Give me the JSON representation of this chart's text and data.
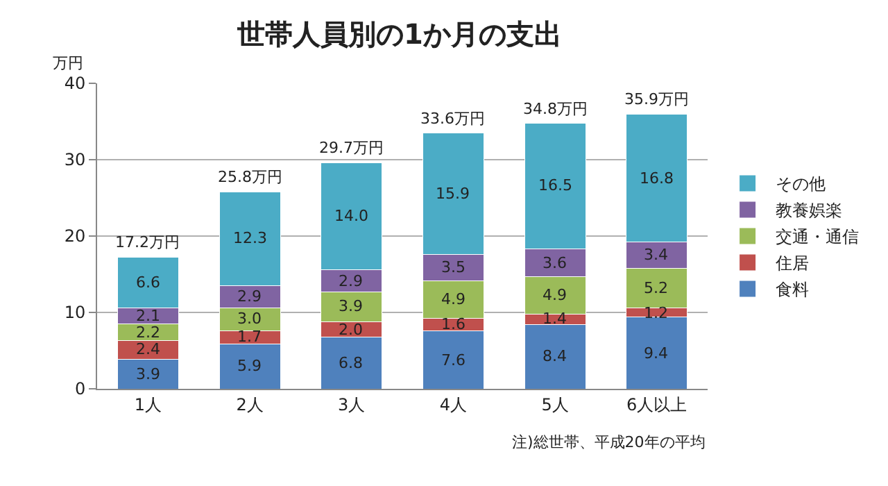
{
  "chart_data": {
    "type": "bar",
    "title": "世帯人員別の1か月の支出",
    "ylabel": "万円",
    "categories": [
      "1人",
      "2人",
      "3人",
      "4人",
      "5人",
      "6人以上"
    ],
    "stacked": true,
    "series": [
      {
        "name": "食料",
        "color": "#4f81bd",
        "values": [
          3.9,
          5.9,
          6.8,
          7.6,
          8.4,
          9.4
        ],
        "value_labels": [
          "3.9",
          "5.9",
          "6.8",
          "7.6",
          "8.4",
          "9.4"
        ]
      },
      {
        "name": "住居",
        "color": "#c0504d",
        "values": [
          2.4,
          1.7,
          2.0,
          1.6,
          1.4,
          1.2
        ],
        "value_labels": [
          "2.4",
          "1.7",
          "2.0",
          "1.6",
          "1.4",
          "1.2"
        ]
      },
      {
        "name": "交通・通信",
        "color": "#9bbb59",
        "values": [
          2.2,
          3.0,
          3.9,
          4.9,
          4.9,
          5.2
        ],
        "value_labels": [
          "2.2",
          "3.0",
          "3.9",
          "4.9",
          "4.9",
          "5.2"
        ]
      },
      {
        "name": "教養娯楽",
        "color": "#8064a2",
        "values": [
          2.1,
          2.9,
          2.9,
          3.5,
          3.6,
          3.4
        ],
        "value_labels": [
          "2.1",
          "2.9",
          "2.9",
          "3.5",
          "3.6",
          "3.4"
        ]
      },
      {
        "name": "その他",
        "color": "#4bacc6",
        "values": [
          6.6,
          12.3,
          14.0,
          15.9,
          16.5,
          16.8
        ],
        "value_labels": [
          "6.6",
          "12.3",
          "14.0",
          "15.9",
          "16.5",
          "16.8"
        ]
      }
    ],
    "totals": [
      "17.2万円",
      "25.8万円",
      "29.7万円",
      "33.6万円",
      "34.8万円",
      "35.9万円"
    ],
    "ylim": [
      0,
      40
    ],
    "yticks": [
      0,
      10,
      20,
      30,
      40
    ],
    "grid": "y",
    "legend": "right",
    "annotations": [
      "注)総世帯、平成20年の平均"
    ]
  }
}
